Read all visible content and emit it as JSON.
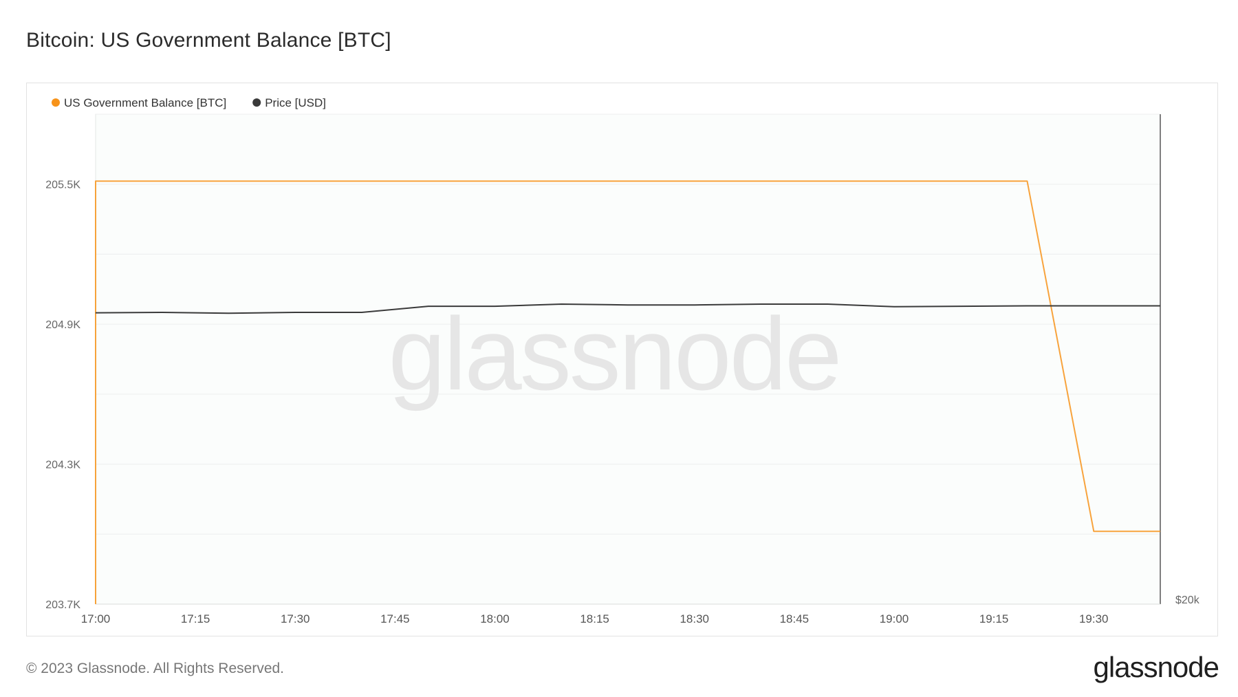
{
  "title": "Bitcoin: US Government Balance [BTC]",
  "watermark": "glassnode",
  "footer": {
    "copyright": "© 2023 Glassnode. All Rights Reserved.",
    "logo": "glassnode"
  },
  "colors": {
    "balance": "#f7931a",
    "price": "#3a3a3a",
    "plot_bg": "#fbfdfc",
    "grid": "#eceeee",
    "watermark": "#e6e6e6"
  },
  "chart_data": {
    "type": "line",
    "title": "Bitcoin: US Government Balance [BTC]",
    "legend_position": "top-left",
    "grid": true,
    "x": [
      "17:00",
      "17:10",
      "17:20",
      "17:30",
      "17:40",
      "17:50",
      "18:00",
      "18:10",
      "18:20",
      "18:30",
      "18:40",
      "18:50",
      "19:00",
      "19:10",
      "19:20",
      "19:30",
      "19:40"
    ],
    "xticks": [
      "17:00",
      "17:15",
      "17:30",
      "17:45",
      "18:00",
      "18:15",
      "18:30",
      "18:45",
      "19:00",
      "19:15",
      "19:30"
    ],
    "xlim": [
      "17:00",
      "19:40"
    ],
    "y_left": {
      "ticks": [
        "205.5K",
        "204.9K",
        "204.3K",
        "203.7K"
      ],
      "tick_values": [
        205500,
        204900,
        204300,
        203700
      ],
      "range": [
        203700,
        205800
      ]
    },
    "y_right": {
      "ticks": [
        "$20k"
      ],
      "tick_values": [
        20000
      ],
      "range": [
        20000,
        31300
      ]
    },
    "series": [
      {
        "name": "US Government Balance [BTC]",
        "axis": "left",
        "values": [
          205513,
          205513,
          205513,
          205513,
          205513,
          205513,
          205513,
          205513,
          205513,
          205513,
          205513,
          205513,
          205513,
          205513,
          205513,
          204012,
          204012
        ]
      },
      {
        "name": "Price [USD]",
        "axis": "right",
        "values": [
          26720,
          26730,
          26710,
          26730,
          26730,
          26870,
          26870,
          26920,
          26900,
          26900,
          26920,
          26920,
          26860,
          26870,
          26880,
          26880,
          26880
        ]
      }
    ]
  }
}
